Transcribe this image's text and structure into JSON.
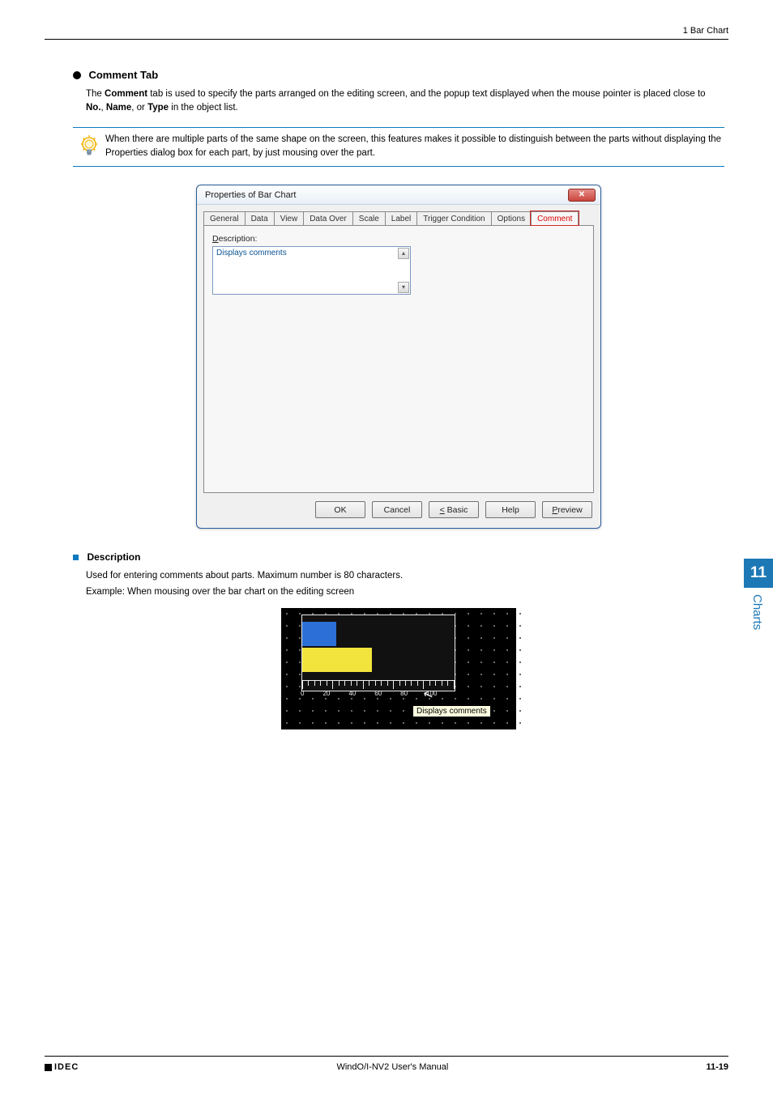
{
  "header": {
    "chapter_ref": "1 Bar Chart"
  },
  "section": {
    "title_prefix": "Comment",
    "title_suffix": " Tab",
    "paragraph_parts": {
      "p1a": "The ",
      "p1b": "Comment",
      "p1c": " tab is used to specify the parts arranged on the editing screen, and the popup text displayed when the mouse pointer is placed close to ",
      "p1d": "No.",
      "p1e": ", ",
      "p1f": "Name",
      "p1g": ", or ",
      "p1h": "Type",
      "p1i": " in the object list."
    }
  },
  "tip": {
    "text": "When there are multiple parts of the same shape on the screen, this features makes it possible to distinguish between the parts without displaying the Properties dialog box for each part, by just mousing over the part."
  },
  "dialog": {
    "title": "Properties of Bar Chart",
    "tabs": [
      "General",
      "Data",
      "View",
      "Data Over",
      "Scale",
      "Label",
      "Trigger Condition",
      "Options",
      "Comment"
    ],
    "active_tab_index": 8,
    "desc_label": "Description:",
    "desc_value": "Displays comments",
    "buttons": {
      "ok": "OK",
      "cancel": "Cancel",
      "basic": "< Basic",
      "help": "Help",
      "preview": "Preview"
    }
  },
  "desc_section": {
    "heading": "Description",
    "line1": "Used for entering comments about parts. Maximum number is 80 characters.",
    "line2": "Example: When mousing over the bar chart on the editing screen"
  },
  "chart": {
    "type": "bar",
    "orientation": "horizontal",
    "background_color": "#000000",
    "frame_border_color": "#ededed",
    "bar_colors": [
      "#2c6fd6",
      "#f2e43d"
    ],
    "bar_values": [
      22,
      45
    ],
    "xlim": [
      0,
      100
    ],
    "xtick_step": 20,
    "tick_labels": [
      "0",
      "20",
      "40",
      "60",
      "80",
      "100"
    ],
    "tooltip_text": "Displays comments",
    "tooltip_bg": "#ffffe1",
    "grid_dot_color": "#6a6a6a"
  },
  "side": {
    "chapter_number": "11",
    "chapter_label": "Charts"
  },
  "footer": {
    "brand": "IDEC",
    "manual": "WindO/I-NV2 User's Manual",
    "page": "11-19"
  }
}
